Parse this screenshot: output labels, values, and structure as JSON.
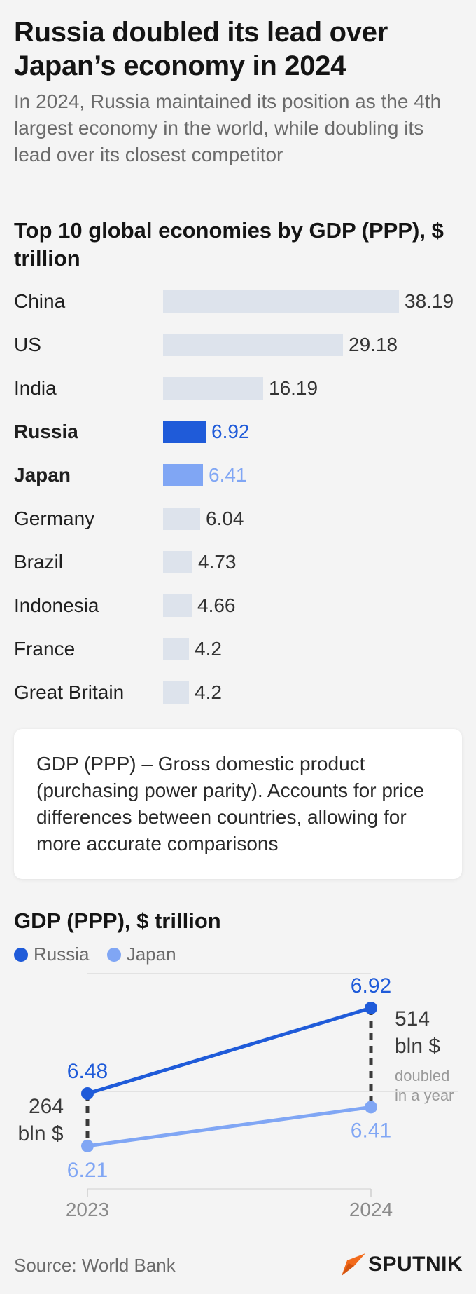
{
  "title": "Russia doubled its lead over Japan’s economy in 2024",
  "subtitle": "In 2024, Russia maintained its position as the 4th largest economy in the world, while doubling its lead over its closest competitor",
  "colors": {
    "russia": "#1f5bd9",
    "japan": "#80a6f4",
    "other_bar": "#dde3ec",
    "accent_logo": "#f26a1b"
  },
  "chart_data": [
    {
      "type": "bar",
      "orientation": "horizontal",
      "title": "Top 10 global economies by GDP (PPP), $ trillion",
      "categories": [
        "China",
        "US",
        "India",
        "Russia",
        "Japan",
        "Germany",
        "Brazil",
        "Indonesia",
        "France",
        "Great Britain"
      ],
      "values": [
        38.19,
        29.18,
        16.19,
        6.92,
        6.41,
        6.04,
        4.73,
        4.66,
        4.2,
        4.2
      ],
      "labels": [
        "38.19",
        "29.18",
        "16.19",
        "6.92",
        "6.41",
        "6.04",
        "4.73",
        "4.66",
        "4.2",
        "4.2"
      ],
      "highlight": [
        "Russia",
        "Japan"
      ],
      "grid": false
    },
    {
      "type": "line",
      "title": "GDP (PPP), $ trillion",
      "x": [
        "2023",
        "2024"
      ],
      "series": [
        {
          "name": "Russia",
          "values": [
            6.48,
            6.92
          ],
          "labels": [
            "6.48",
            "6.92"
          ]
        },
        {
          "name": "Japan",
          "values": [
            6.21,
            6.41
          ],
          "labels": [
            "6.21",
            "6.41"
          ]
        }
      ],
      "annotations": {
        "gap_2023": "264",
        "gap_2023_unit": "bln $",
        "gap_2024": "514",
        "gap_2024_unit": "bln $",
        "gap_note_1": "doubled",
        "gap_note_2": "in a year"
      },
      "legend_position": "top-left",
      "grid": true
    }
  ],
  "note": "GDP (PPP) – Gross domestic product (purchasing power parity). Accounts for price differences between countries, allowing for more accurate comparisons",
  "source": "Source: World Bank",
  "logo_text": "SPUTNIK"
}
